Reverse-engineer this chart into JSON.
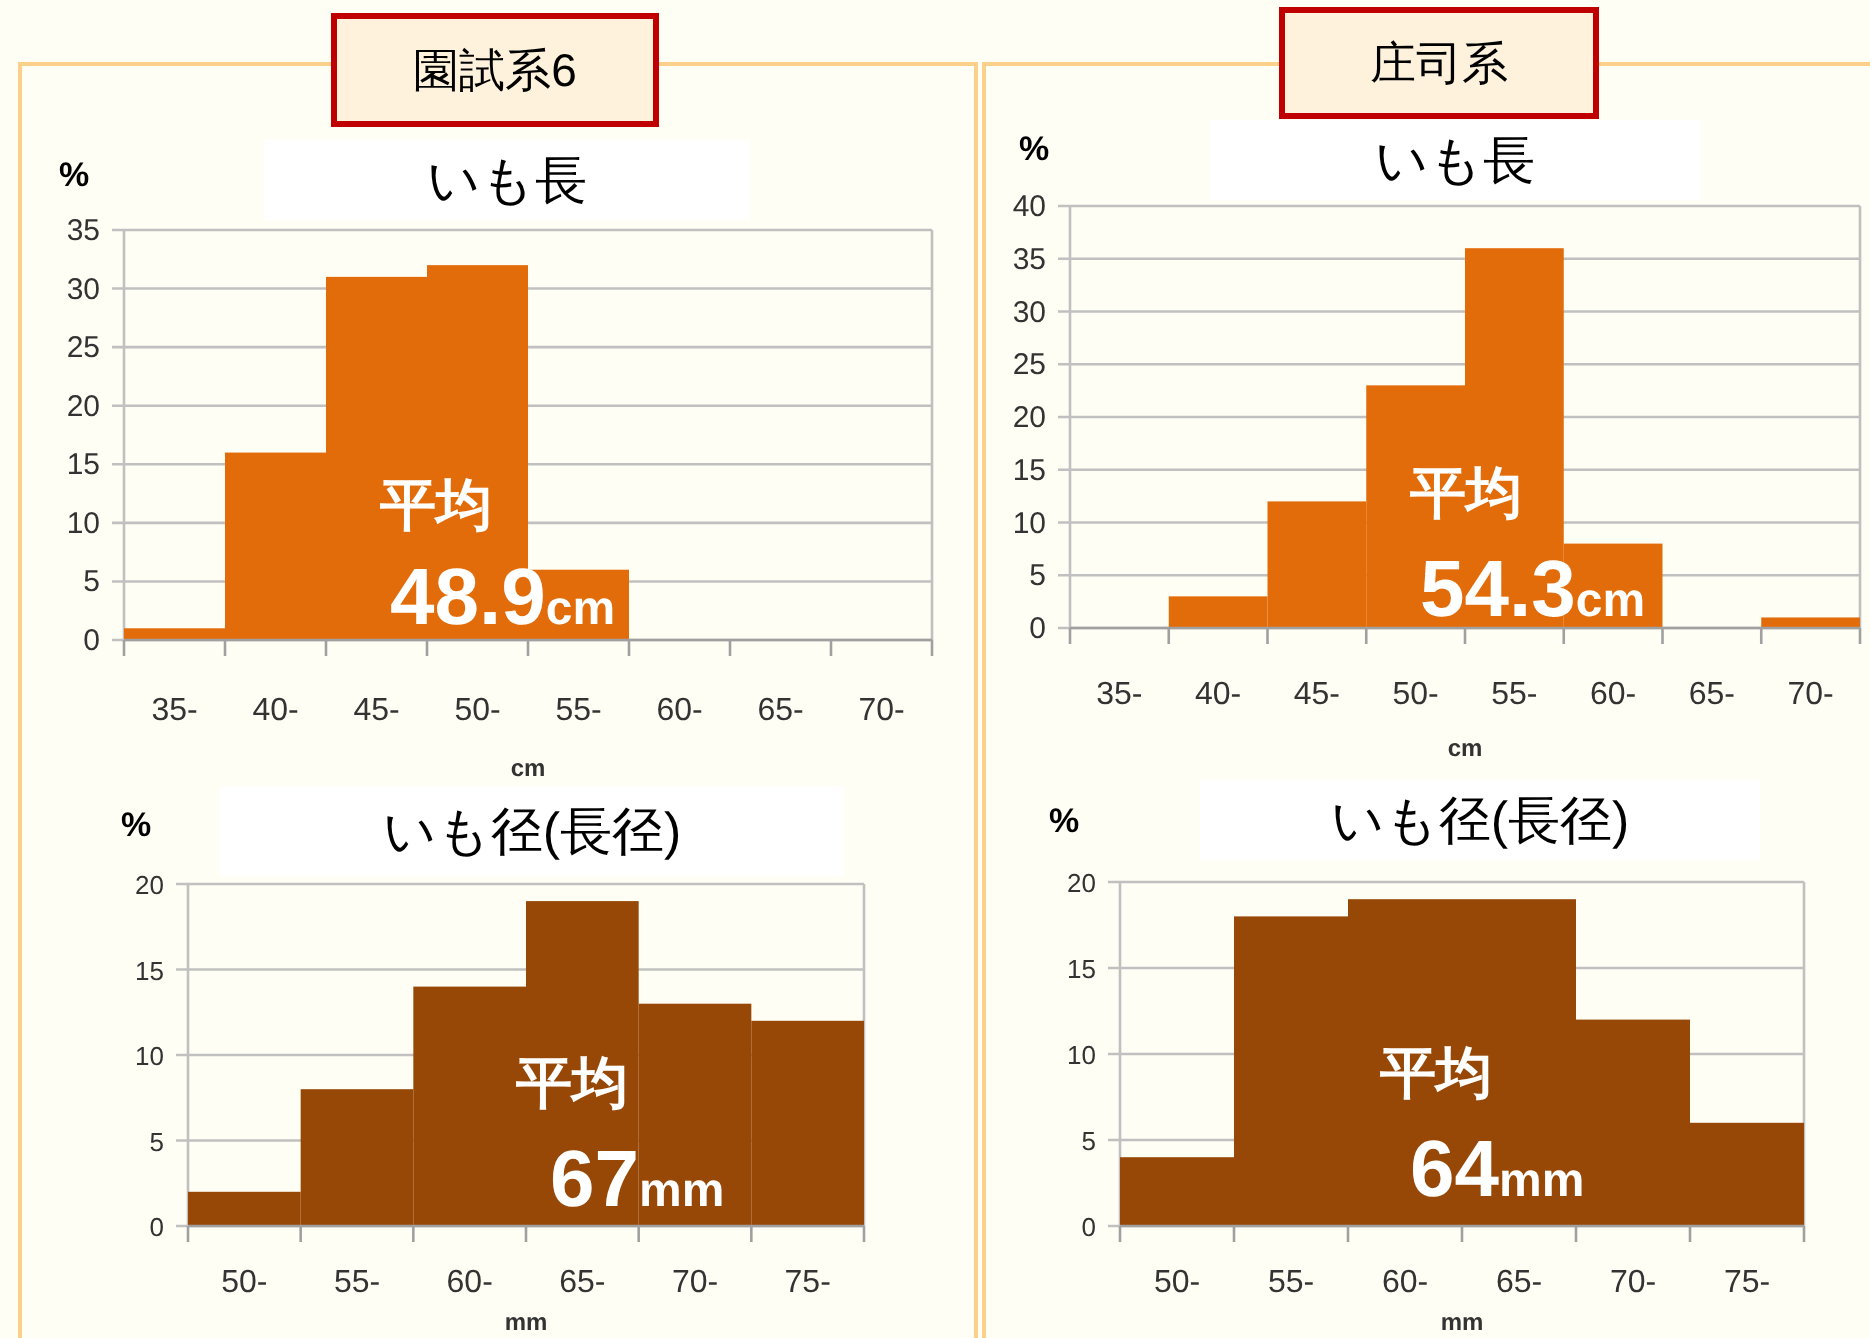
{
  "chart_data": [
    {
      "type": "bar",
      "subtitle": "園試系6",
      "title": "いも長",
      "ylabel": "%",
      "xlabel": "cm",
      "categories": [
        "35-",
        "40-",
        "45-",
        "50-",
        "55-",
        "60-",
        "65-",
        "70-"
      ],
      "values": [
        1,
        16,
        31,
        32,
        6,
        0,
        0,
        0
      ],
      "color": "#e36c0a",
      "ylim": [
        0,
        35
      ],
      "yticks": [
        0,
        5,
        10,
        15,
        20,
        25,
        30,
        35
      ],
      "grid": "y",
      "annotations": [
        "平均",
        "48.9cm"
      ]
    },
    {
      "type": "bar",
      "subtitle": "庄司系",
      "title": "いも長",
      "ylabel": "%",
      "xlabel": "cm",
      "categories": [
        "35-",
        "40-",
        "45-",
        "50-",
        "55-",
        "60-",
        "65-",
        "70-"
      ],
      "values": [
        0,
        3,
        12,
        23,
        36,
        8,
        0,
        1
      ],
      "color": "#e36c0a",
      "ylim": [
        0,
        40
      ],
      "yticks": [
        0,
        5,
        10,
        15,
        20,
        25,
        30,
        35,
        40
      ],
      "grid": "y",
      "annotations": [
        "平均",
        "54.3cm"
      ]
    },
    {
      "type": "bar",
      "title": "いも径(長径)",
      "ylabel": "%",
      "xlabel": "mm",
      "categories": [
        "50-",
        "55-",
        "60-",
        "65-",
        "70-",
        "75-"
      ],
      "values": [
        2,
        8,
        14,
        19,
        13,
        12
      ],
      "color": "#974806",
      "ylim": [
        0,
        20
      ],
      "yticks": [
        0,
        5,
        10,
        15,
        20
      ],
      "grid": "y",
      "annotations": [
        "平均",
        "67mm"
      ]
    },
    {
      "type": "bar",
      "title": "いも径(長径)",
      "ylabel": "%",
      "xlabel": "mm",
      "categories": [
        "50-",
        "55-",
        "60-",
        "65-",
        "70-",
        "75-"
      ],
      "values": [
        4,
        18,
        19,
        19,
        12,
        6
      ],
      "color": "#974806",
      "ylim": [
        0,
        20
      ],
      "yticks": [
        0,
        5,
        10,
        15,
        20
      ],
      "grid": "y",
      "annotations": [
        "平均",
        "64mm"
      ]
    }
  ]
}
